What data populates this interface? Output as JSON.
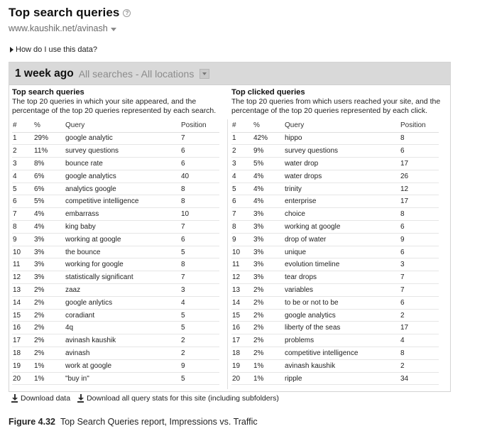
{
  "header": {
    "title": "Top search queries",
    "help_icon": "question-icon",
    "site": "www.kaushik.net/avinash",
    "how_link": "How do I use this data?"
  },
  "filter": {
    "period": "1 week ago",
    "scope": "All searches - All locations"
  },
  "left": {
    "title": "Top search queries",
    "desc": "The top 20 queries in which your site appeared, and the percentage of the top 20 queries represented by each search.",
    "headers": [
      "#",
      "%",
      "Query",
      "Position"
    ],
    "rows": [
      [
        "1",
        "29%",
        "google analytic",
        "7"
      ],
      [
        "2",
        "11%",
        "survey questions",
        "6"
      ],
      [
        "3",
        "8%",
        "bounce rate",
        "6"
      ],
      [
        "4",
        "6%",
        "google analytics",
        "40"
      ],
      [
        "5",
        "6%",
        "analytics google",
        "8"
      ],
      [
        "6",
        "5%",
        "competitive intelligence",
        "8"
      ],
      [
        "7",
        "4%",
        "embarrass",
        "10"
      ],
      [
        "8",
        "4%",
        "king baby",
        "7"
      ],
      [
        "9",
        "3%",
        "working at google",
        "6"
      ],
      [
        "10",
        "3%",
        "the bounce",
        "5"
      ],
      [
        "11",
        "3%",
        "working for google",
        "8"
      ],
      [
        "12",
        "3%",
        "statistically significant",
        "7"
      ],
      [
        "13",
        "2%",
        "zaaz",
        "3"
      ],
      [
        "14",
        "2%",
        "google anlytics",
        "4"
      ],
      [
        "15",
        "2%",
        "coradiant",
        "5"
      ],
      [
        "16",
        "2%",
        "4q",
        "5"
      ],
      [
        "17",
        "2%",
        "avinash kaushik",
        "2"
      ],
      [
        "18",
        "2%",
        "avinash",
        "2"
      ],
      [
        "19",
        "1%",
        "work at google",
        "9"
      ],
      [
        "20",
        "1%",
        "\"buy in\"",
        "5"
      ]
    ]
  },
  "right": {
    "title": "Top clicked queries",
    "desc": "The top 20 queries from which users reached your site, and the percentage of the top 20 queries represented by each click.",
    "headers": [
      "#",
      "%",
      "Query",
      "Position"
    ],
    "rows": [
      [
        "1",
        "42%",
        "hippo",
        "8"
      ],
      [
        "2",
        "9%",
        "survey questions",
        "6"
      ],
      [
        "3",
        "5%",
        "water drop",
        "17"
      ],
      [
        "4",
        "4%",
        "water drops",
        "26"
      ],
      [
        "5",
        "4%",
        "trinity",
        "12"
      ],
      [
        "6",
        "4%",
        "enterprise",
        "17"
      ],
      [
        "7",
        "3%",
        "choice",
        "8"
      ],
      [
        "8",
        "3%",
        "working at google",
        "6"
      ],
      [
        "9",
        "3%",
        "drop of water",
        "9"
      ],
      [
        "10",
        "3%",
        "unique",
        "6"
      ],
      [
        "11",
        "3%",
        "evolution timeline",
        "3"
      ],
      [
        "12",
        "3%",
        "tear drops",
        "7"
      ],
      [
        "13",
        "2%",
        "variables",
        "7"
      ],
      [
        "14",
        "2%",
        "to be or not to be",
        "6"
      ],
      [
        "15",
        "2%",
        "google analytics",
        "2"
      ],
      [
        "16",
        "2%",
        "liberty of the seas",
        "17"
      ],
      [
        "17",
        "2%",
        "problems",
        "4"
      ],
      [
        "18",
        "2%",
        "competitive intelligence",
        "8"
      ],
      [
        "19",
        "1%",
        "avinash kaushik",
        "2"
      ],
      [
        "20",
        "1%",
        "ripple",
        "34"
      ]
    ]
  },
  "downloads": {
    "download_data": "Download data",
    "download_all": "Download all query stats for this site (including subfolders)",
    "icon": "download-icon"
  },
  "caption": {
    "label": "Figure 4.32",
    "text": "Top Search Queries report, Impressions vs. Traffic"
  }
}
